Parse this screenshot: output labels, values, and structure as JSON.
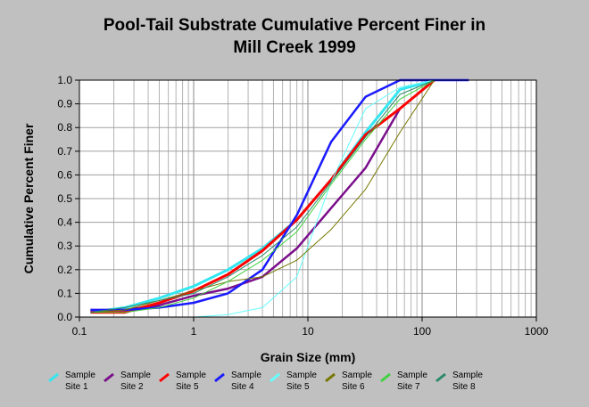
{
  "chart_data": {
    "type": "line",
    "title_lines": [
      "Pool-Tail Substrate Cumulative Percent Finer in",
      "Mill Creek 1999"
    ],
    "xlabel": "Grain Size (mm)",
    "ylabel": "Cumulative Percent Finer",
    "x_scale": "log",
    "xlim": [
      0.1,
      1000
    ],
    "ylim": [
      0,
      1.0
    ],
    "x_ticks": [
      {
        "value": 0.1,
        "label": "0.1"
      },
      {
        "value": 1,
        "label": "1"
      },
      {
        "value": 10,
        "label": "10"
      },
      {
        "value": 100,
        "label": "100"
      },
      {
        "value": 1000,
        "label": "1000"
      }
    ],
    "y_ticks": [
      {
        "value": 0.0,
        "label": "0.0"
      },
      {
        "value": 0.1,
        "label": "0.1"
      },
      {
        "value": 0.2,
        "label": "0.2"
      },
      {
        "value": 0.3,
        "label": "0.3"
      },
      {
        "value": 0.4,
        "label": "0.4"
      },
      {
        "value": 0.5,
        "label": "0.5"
      },
      {
        "value": 0.6,
        "label": "0.6"
      },
      {
        "value": 0.7,
        "label": "0.7"
      },
      {
        "value": 0.8,
        "label": "0.8"
      },
      {
        "value": 0.9,
        "label": "0.9"
      },
      {
        "value": 1.0,
        "label": "1.0"
      }
    ],
    "grid": true,
    "legend_position": "bottom",
    "series": [
      {
        "legend_line1": "Sample",
        "legend_line2": "Site 1",
        "color": "#33e6f0",
        "width": 3,
        "x": [
          0.125,
          0.25,
          0.5,
          1,
          2,
          4,
          8,
          16,
          32,
          64,
          128
        ],
        "y": [
          0.02,
          0.04,
          0.08,
          0.13,
          0.2,
          0.29,
          0.41,
          0.58,
          0.78,
          0.96,
          1.0
        ]
      },
      {
        "legend_line1": "Sample",
        "legend_line2": "Site 2",
        "color": "#7b0f8c",
        "width": 2.5,
        "x": [
          0.125,
          0.25,
          0.5,
          1,
          2,
          4,
          8,
          16,
          32,
          64,
          128
        ],
        "y": [
          0.03,
          0.03,
          0.05,
          0.09,
          0.12,
          0.17,
          0.29,
          0.46,
          0.63,
          0.88,
          1.0
        ]
      },
      {
        "legend_line1": "Sample",
        "legend_line2": "Site 5",
        "color": "#ff0000",
        "width": 3,
        "x": [
          0.125,
          0.25,
          0.5,
          1,
          2,
          4,
          8,
          16,
          32,
          64,
          128
        ],
        "y": [
          0.02,
          0.02,
          0.06,
          0.11,
          0.18,
          0.28,
          0.41,
          0.58,
          0.77,
          0.88,
          1.0
        ]
      },
      {
        "legend_line1": "Sample",
        "legend_line2": "Site 4",
        "color": "#1a1aff",
        "width": 2.5,
        "x": [
          0.125,
          0.25,
          0.5,
          1,
          2,
          4,
          8,
          16,
          32,
          64,
          256
        ],
        "y": [
          0.03,
          0.03,
          0.04,
          0.06,
          0.1,
          0.2,
          0.43,
          0.74,
          0.93,
          1.0,
          1.0
        ]
      },
      {
        "legend_line1": "Sample",
        "legend_line2": "Site 5",
        "color": "#66ffff",
        "width": 1,
        "x": [
          0.125,
          0.25,
          0.5,
          1,
          2,
          4,
          8,
          16,
          32,
          64,
          128
        ],
        "y": [
          0.0,
          0.0,
          0.0,
          0.0,
          0.01,
          0.04,
          0.17,
          0.57,
          0.88,
          0.97,
          1.0
        ]
      },
      {
        "legend_line1": "Sample",
        "legend_line2": "Site 6",
        "color": "#777700",
        "width": 1,
        "x": [
          0.125,
          0.25,
          0.5,
          1,
          2,
          4,
          8,
          16,
          32,
          64,
          128
        ],
        "y": [
          0.02,
          0.03,
          0.07,
          0.11,
          0.15,
          0.17,
          0.24,
          0.37,
          0.54,
          0.78,
          1.0
        ]
      },
      {
        "legend_line1": "Sample",
        "legend_line2": "Site 7",
        "color": "#40d040",
        "width": 1,
        "x": [
          0.125,
          0.25,
          0.5,
          1,
          2,
          4,
          8,
          16,
          32,
          64,
          128
        ],
        "y": [
          0.02,
          0.02,
          0.04,
          0.08,
          0.15,
          0.24,
          0.36,
          0.56,
          0.75,
          0.92,
          1.0
        ]
      },
      {
        "legend_line1": "Sample",
        "legend_line2": "Site 8",
        "color": "#2a8a6a",
        "width": 1,
        "x": [
          0.125,
          0.25,
          0.5,
          1,
          2,
          4,
          8,
          16,
          32,
          64,
          128
        ],
        "y": [
          0.02,
          0.04,
          0.07,
          0.1,
          0.17,
          0.26,
          0.38,
          0.57,
          0.76,
          0.94,
          1.0
        ]
      }
    ]
  }
}
